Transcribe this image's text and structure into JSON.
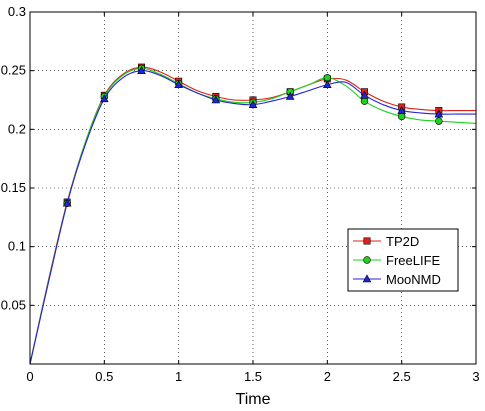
{
  "chart_data": {
    "type": "line",
    "xlabel": "Time",
    "ylabel": "",
    "xlim": [
      0,
      3
    ],
    "ylim": [
      0,
      0.3
    ],
    "xticks": [
      0,
      0.5,
      1,
      1.5,
      2,
      2.5,
      3
    ],
    "xtick_labels": [
      "0",
      "0.5",
      "1",
      "1.5",
      "2",
      "2.5",
      "3"
    ],
    "yticks": [
      0.05,
      0.1,
      0.15,
      0.2,
      0.25,
      0.3
    ],
    "ytick_labels": [
      "0.05",
      "0.1",
      "0.15",
      "0.2",
      "0.25",
      "0.3"
    ],
    "grid": true,
    "legend_position": "lower-right",
    "series": [
      {
        "name": "TP2D",
        "color": "#e0201a",
        "marker": "square",
        "x": [
          0,
          0.125,
          0.25,
          0.375,
          0.5,
          0.625,
          0.75,
          0.875,
          1,
          1.125,
          1.25,
          1.375,
          1.5,
          1.625,
          1.75,
          1.875,
          2,
          2.125,
          2.25,
          2.375,
          2.5,
          2.625,
          2.75,
          2.875,
          3
        ],
        "y": [
          0,
          0.072,
          0.138,
          0.19,
          0.229,
          0.247,
          0.253,
          0.249,
          0.241,
          0.233,
          0.228,
          0.225,
          0.225,
          0.227,
          0.232,
          0.238,
          0.243,
          0.242,
          0.232,
          0.224,
          0.219,
          0.217,
          0.216,
          0.216,
          0.216
        ],
        "marker_x": [
          0.25,
          0.5,
          0.75,
          1,
          1.25,
          1.5,
          1.75,
          2,
          2.25,
          2.5,
          2.75
        ]
      },
      {
        "name": "FreeLIFE",
        "color": "#1fd11f",
        "marker": "circle",
        "x": [
          0,
          0.125,
          0.25,
          0.375,
          0.5,
          0.625,
          0.75,
          0.875,
          1,
          1.125,
          1.25,
          1.375,
          1.5,
          1.625,
          1.75,
          1.875,
          2,
          2.125,
          2.25,
          2.375,
          2.5,
          2.625,
          2.75,
          2.875,
          3
        ],
        "y": [
          0,
          0.071,
          0.137,
          0.19,
          0.228,
          0.246,
          0.252,
          0.247,
          0.239,
          0.231,
          0.226,
          0.223,
          0.223,
          0.226,
          0.232,
          0.238,
          0.244,
          0.237,
          0.224,
          0.216,
          0.211,
          0.208,
          0.207,
          0.206,
          0.205
        ],
        "marker_x": [
          0.25,
          0.5,
          0.75,
          1,
          1.25,
          1.5,
          1.75,
          2,
          2.25,
          2.5,
          2.75
        ]
      },
      {
        "name": "MooNMD",
        "color": "#2323d8",
        "marker": "triangle",
        "x": [
          0,
          0.125,
          0.25,
          0.375,
          0.5,
          0.625,
          0.75,
          0.875,
          1,
          1.125,
          1.25,
          1.375,
          1.5,
          1.625,
          1.75,
          1.875,
          2,
          2.125,
          2.25,
          2.375,
          2.5,
          2.625,
          2.75,
          2.875,
          3
        ],
        "y": [
          0,
          0.07,
          0.137,
          0.188,
          0.226,
          0.244,
          0.25,
          0.246,
          0.238,
          0.231,
          0.225,
          0.222,
          0.221,
          0.224,
          0.228,
          0.233,
          0.238,
          0.24,
          0.229,
          0.221,
          0.216,
          0.214,
          0.213,
          0.213,
          0.213
        ],
        "marker_x": [
          0.25,
          0.5,
          0.75,
          1,
          1.25,
          1.5,
          1.75,
          2,
          2.25,
          2.5,
          2.75
        ]
      }
    ]
  }
}
